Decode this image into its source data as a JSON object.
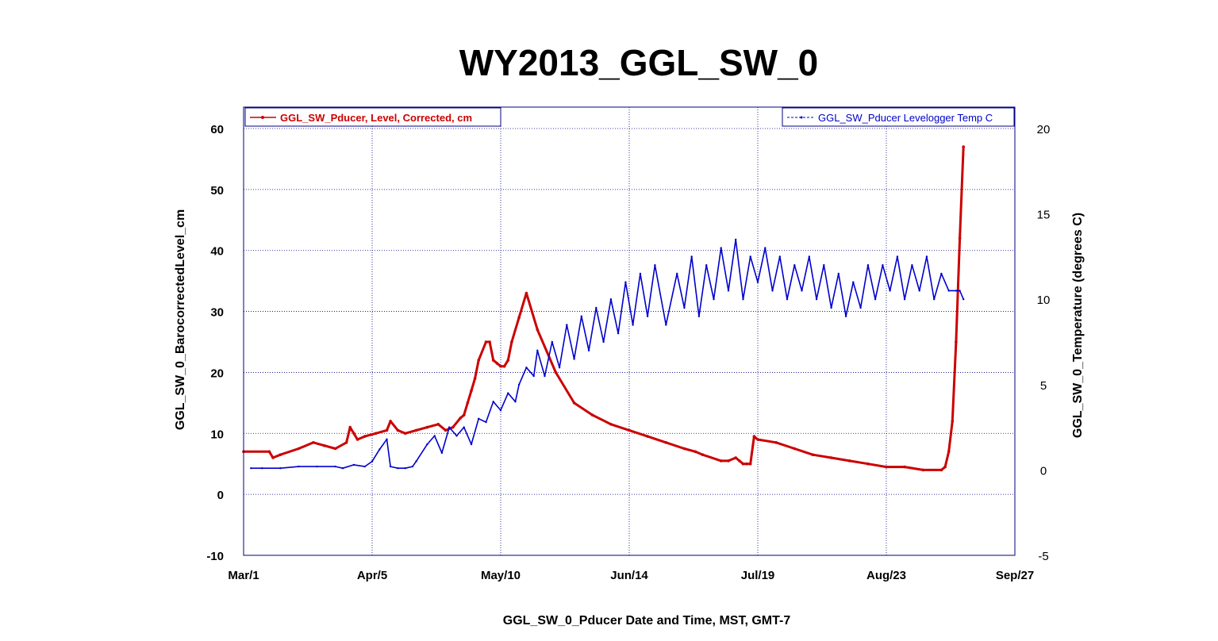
{
  "chart_data": {
    "type": "line",
    "title": "WY2013_GGL_SW_0",
    "xlabel": "GGL_SW_0_Pducer Date and Time, MST, GMT-7",
    "ylabel": "GGL_SW_0_BarocorrectedLevel_cm",
    "y2label": "GGL_SW_0_Temperature (degrees C)",
    "x_ticks": [
      "Mar/1",
      "Apr/5",
      "May/10",
      "Jun/14",
      "Jul/19",
      "Aug/23",
      "Sep/27"
    ],
    "xlim_days": [
      0,
      210
    ],
    "ylim": [
      -10,
      60
    ],
    "y_ticks": [
      "-10",
      "0",
      "10",
      "20",
      "30",
      "40",
      "50",
      "60"
    ],
    "y2lim": [
      -5,
      20
    ],
    "y2_ticks": [
      "-5",
      "0",
      "5",
      "10",
      "15",
      "20"
    ],
    "grid": true,
    "series": [
      {
        "name": "GGL_SW_Pducer, Level, Corrected, cm",
        "axis": "left",
        "color": "#cc0000",
        "legend_position": "top-left",
        "x": [
          0,
          7,
          8,
          10,
          15,
          19,
          22,
          25,
          28,
          29,
          30,
          31,
          33,
          36,
          39,
          40,
          42,
          44,
          47,
          50,
          53,
          55,
          57,
          59,
          60,
          61,
          62,
          63,
          64,
          66,
          67,
          68,
          69,
          70,
          71,
          72,
          73,
          75,
          77,
          80,
          85,
          90,
          95,
          100,
          105,
          110,
          115,
          120,
          123,
          125,
          130,
          132,
          134,
          135,
          136,
          137,
          138,
          139,
          140,
          145,
          150,
          155,
          160,
          165,
          170,
          175,
          180,
          185,
          190,
          191,
          192,
          193,
          194,
          195,
          196
        ],
        "y": [
          7,
          7,
          6,
          6.5,
          7.5,
          8.5,
          8,
          7.5,
          8.5,
          11,
          10,
          9,
          9.5,
          10,
          10.5,
          12,
          10.5,
          10,
          10.5,
          11,
          11.5,
          10.5,
          11,
          12.5,
          13,
          15,
          17,
          19,
          22,
          25,
          25,
          22,
          21.5,
          21,
          21,
          22,
          25,
          29,
          33,
          27,
          20,
          15,
          13,
          11.5,
          10.5,
          9.5,
          8.5,
          7.5,
          7,
          6.5,
          5.5,
          5.5,
          6,
          5.5,
          5,
          5,
          5,
          9.5,
          9,
          8.5,
          7.5,
          6.5,
          6,
          5.5,
          5,
          4.5,
          4.5,
          4,
          4,
          4.5,
          7,
          12,
          25,
          42,
          57
        ]
      },
      {
        "name": "GGL_SW_Pducer Levelogger Temp C",
        "axis": "right",
        "color": "#0000cc",
        "legend_position": "top-right",
        "x": [
          2,
          5,
          10,
          15,
          20,
          25,
          27,
          30,
          33,
          35,
          37,
          39,
          40,
          42,
          44,
          46,
          47,
          50,
          52,
          54,
          56,
          58,
          60,
          62,
          64,
          66,
          68,
          70,
          72,
          74,
          75,
          77,
          79,
          80,
          82,
          84,
          86,
          88,
          90,
          92,
          94,
          96,
          98,
          100,
          102,
          104,
          106,
          108,
          110,
          112,
          115,
          118,
          120,
          122,
          124,
          126,
          128,
          130,
          132,
          134,
          136,
          138,
          140,
          142,
          144,
          146,
          148,
          150,
          152,
          154,
          156,
          158,
          160,
          162,
          164,
          166,
          168,
          170,
          172,
          174,
          176,
          178,
          180,
          182,
          184,
          186,
          188,
          190,
          192,
          194,
          195,
          196
        ],
        "y": [
          0.1,
          0.1,
          0.1,
          0.2,
          0.2,
          0.2,
          0.1,
          0.3,
          0.2,
          0.5,
          1.2,
          1.8,
          0.2,
          0.1,
          0.1,
          0.2,
          0.5,
          1.5,
          2.0,
          1.0,
          2.5,
          2.0,
          2.5,
          1.5,
          3.0,
          2.8,
          4.0,
          3.5,
          4.5,
          4.0,
          5.0,
          6.0,
          5.5,
          7.0,
          5.5,
          7.5,
          6.0,
          8.5,
          6.5,
          9.0,
          7.0,
          9.5,
          7.5,
          10.0,
          8.0,
          11.0,
          8.5,
          11.5,
          9.0,
          12.0,
          8.5,
          11.5,
          9.5,
          12.5,
          9.0,
          12.0,
          10.0,
          13.0,
          10.5,
          13.5,
          10.0,
          12.5,
          11.0,
          13.0,
          10.5,
          12.5,
          10.0,
          12.0,
          10.5,
          12.5,
          10.0,
          12.0,
          9.5,
          11.5,
          9.0,
          11.0,
          9.5,
          12.0,
          10.0,
          12.0,
          10.5,
          12.5,
          10.0,
          12.0,
          10.5,
          12.5,
          10.0,
          11.5,
          10.5,
          10.5,
          10.5,
          10.0
        ]
      }
    ]
  }
}
